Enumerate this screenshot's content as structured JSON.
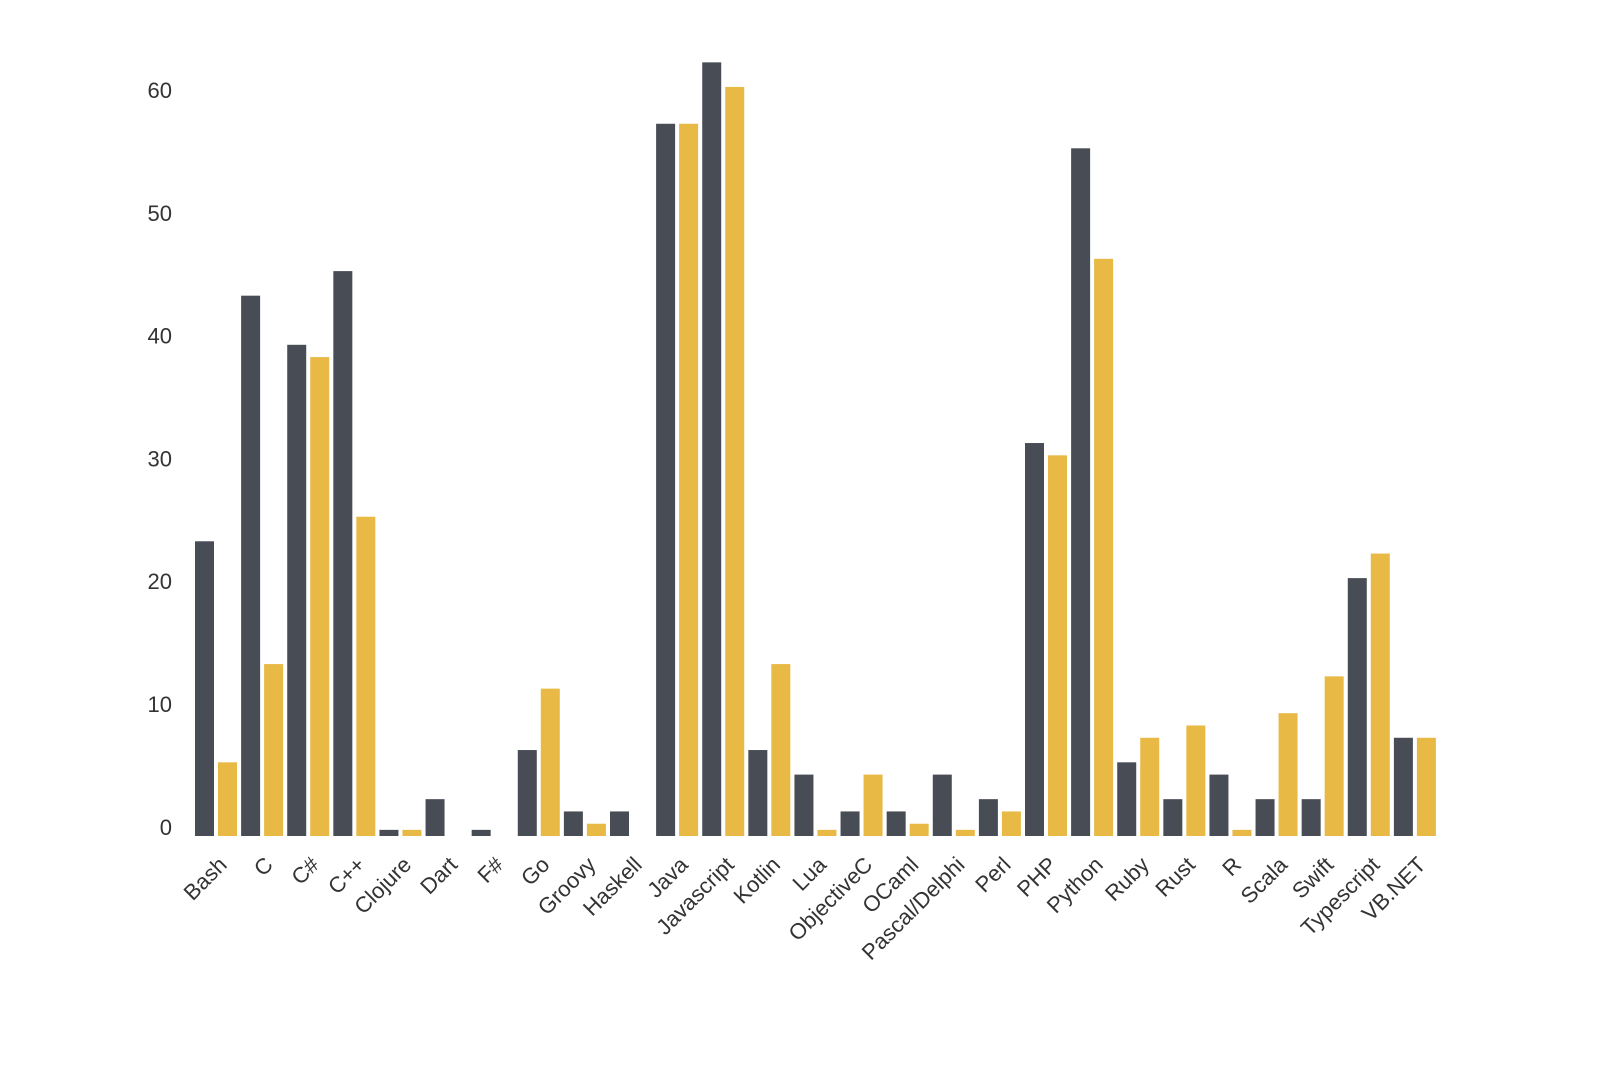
{
  "chart_data": {
    "type": "bar",
    "categories": [
      "Bash",
      "C",
      "C#",
      "C++",
      "Clojure",
      "Dart",
      "F#",
      "Go",
      "Groovy",
      "Haskell",
      "Java",
      "Javascript",
      "Kotlin",
      "Lua",
      "ObjectiveC",
      "OCaml",
      "Pascal/Delphi",
      "Perl",
      "PHP",
      "Python",
      "Ruby",
      "Rust",
      "R",
      "Scala",
      "Swift",
      "Typescript",
      "VB.NET"
    ],
    "series": [
      {
        "color": "#474c55",
        "values": [
          24,
          44,
          40,
          46,
          0.5,
          3,
          0.5,
          7,
          2,
          2,
          58,
          63,
          7,
          5,
          2,
          2,
          5,
          3,
          32,
          56,
          6,
          3,
          5,
          3,
          3,
          21,
          8
        ]
      },
      {
        "color": "#e8b945",
        "values": [
          6,
          14,
          39,
          26,
          0.5,
          0,
          0,
          12,
          1,
          0,
          58,
          61,
          14,
          0.5,
          5,
          1,
          0.5,
          2,
          31,
          47,
          8,
          9,
          0.5,
          10,
          13,
          23,
          8
        ]
      }
    ],
    "ylim": [
      0,
      65
    ],
    "yticks": [
      0,
      10,
      20,
      30,
      40,
      50,
      60
    ],
    "grid": false
  }
}
